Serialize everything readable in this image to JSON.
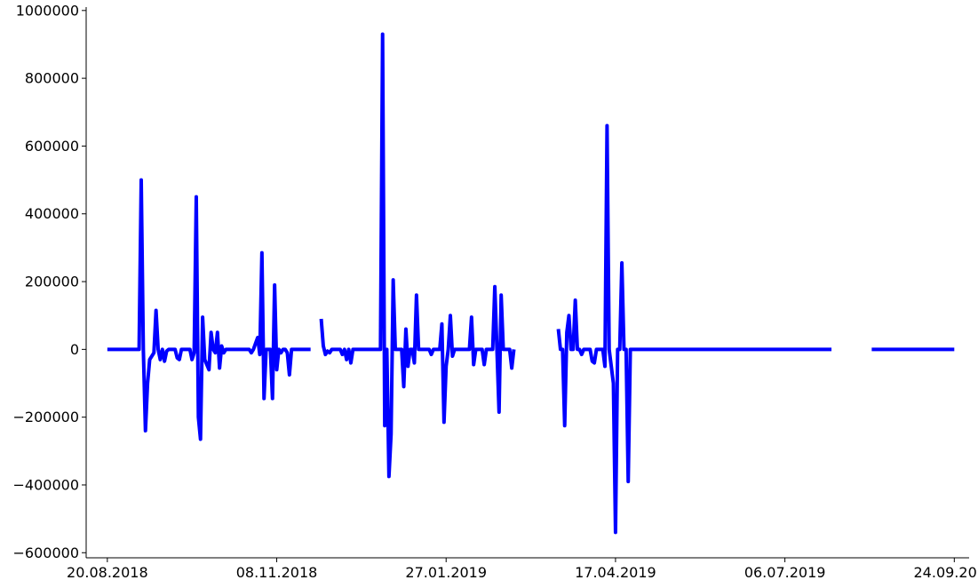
{
  "chart_data": {
    "type": "line",
    "title": "",
    "xlabel": "",
    "ylabel": "",
    "grid": false,
    "legend": "none",
    "x_axis": {
      "type": "date",
      "min": "2018-08-10",
      "max": "2019-10-01",
      "ticks": [
        {
          "value": "2018-08-20",
          "label": "20.08.2018"
        },
        {
          "value": "2018-11-08",
          "label": "08.11.2018"
        },
        {
          "value": "2019-01-27",
          "label": "27.01.2019"
        },
        {
          "value": "2019-04-17",
          "label": "17.04.2019"
        },
        {
          "value": "2019-07-06",
          "label": "06.07.2019"
        },
        {
          "value": "2019-09-24",
          "label": "24.09.2019"
        }
      ]
    },
    "y_axis": {
      "min": -615000,
      "max": 1010000,
      "ticks": [
        {
          "value": -600000,
          "label": "−600000"
        },
        {
          "value": -400000,
          "label": "−400000"
        },
        {
          "value": -200000,
          "label": "−200000"
        },
        {
          "value": 0,
          "label": "0"
        },
        {
          "value": 200000,
          "label": "200000"
        },
        {
          "value": 400000,
          "label": "400000"
        },
        {
          "value": 600000,
          "label": "600000"
        },
        {
          "value": 800000,
          "label": "800000"
        },
        {
          "value": 1000000,
          "label": "1000000"
        }
      ]
    },
    "series": [
      {
        "color": "#0000ff",
        "segments": [
          [
            [
              "2018-08-20",
              0
            ],
            [
              "2018-09-04",
              0
            ],
            [
              "2018-09-05",
              500000
            ],
            [
              "2018-09-06",
              0
            ],
            [
              "2018-09-07",
              -240000
            ],
            [
              "2018-09-08",
              -100000
            ],
            [
              "2018-09-09",
              -30000
            ],
            [
              "2018-09-11",
              -10000
            ],
            [
              "2018-09-12",
              115000
            ],
            [
              "2018-09-13",
              0
            ],
            [
              "2018-09-14",
              -30000
            ],
            [
              "2018-09-15",
              0
            ],
            [
              "2018-09-16",
              -35000
            ],
            [
              "2018-09-17",
              -5000
            ],
            [
              "2018-09-18",
              0
            ],
            [
              "2018-09-21",
              0
            ],
            [
              "2018-09-22",
              -25000
            ],
            [
              "2018-09-23",
              -30000
            ],
            [
              "2018-09-24",
              0
            ],
            [
              "2018-09-28",
              0
            ],
            [
              "2018-09-29",
              -30000
            ],
            [
              "2018-09-30",
              -10000
            ],
            [
              "2018-10-01",
              450000
            ],
            [
              "2018-10-02",
              -200000
            ],
            [
              "2018-10-03",
              -265000
            ],
            [
              "2018-10-04",
              95000
            ],
            [
              "2018-10-05",
              -30000
            ],
            [
              "2018-10-07",
              -60000
            ],
            [
              "2018-10-08",
              50000
            ],
            [
              "2018-10-09",
              0
            ],
            [
              "2018-10-10",
              -10000
            ],
            [
              "2018-10-11",
              50000
            ],
            [
              "2018-10-12",
              -55000
            ],
            [
              "2018-10-13",
              10000
            ],
            [
              "2018-10-14",
              -10000
            ],
            [
              "2018-10-15",
              0
            ],
            [
              "2018-10-26",
              0
            ],
            [
              "2018-10-27",
              -10000
            ],
            [
              "2018-10-28",
              0
            ],
            [
              "2018-10-30",
              35000
            ],
            [
              "2018-10-31",
              -15000
            ],
            [
              "2018-11-01",
              285000
            ],
            [
              "2018-11-02",
              -145000
            ],
            [
              "2018-11-03",
              0
            ],
            [
              "2018-11-05",
              0
            ],
            [
              "2018-11-06",
              -145000
            ],
            [
              "2018-11-07",
              190000
            ],
            [
              "2018-11-08",
              -60000
            ],
            [
              "2018-11-09",
              0
            ],
            [
              "2018-11-10",
              -10000
            ],
            [
              "2018-11-11",
              0
            ],
            [
              "2018-11-12",
              0
            ],
            [
              "2018-11-13",
              -10000
            ],
            [
              "2018-11-14",
              -75000
            ],
            [
              "2018-11-15",
              0
            ],
            [
              "2018-11-24",
              0
            ]
          ],
          [
            [
              "2018-11-29",
              90000
            ],
            [
              "2018-11-30",
              10000
            ],
            [
              "2018-12-01",
              -15000
            ],
            [
              "2018-12-02",
              -5000
            ],
            [
              "2018-12-03",
              -10000
            ],
            [
              "2018-12-04",
              0
            ],
            [
              "2018-12-08",
              0
            ],
            [
              "2018-12-09",
              -15000
            ],
            [
              "2018-12-10",
              0
            ],
            [
              "2018-12-11",
              -30000
            ],
            [
              "2018-12-12",
              0
            ],
            [
              "2018-12-13",
              -40000
            ],
            [
              "2018-12-14",
              0
            ],
            [
              "2018-12-27",
              0
            ],
            [
              "2018-12-28",
              930000
            ],
            [
              "2018-12-29",
              -225000
            ],
            [
              "2018-12-30",
              0
            ],
            [
              "2018-12-31",
              -375000
            ],
            [
              "2019-01-01",
              -250000
            ],
            [
              "2019-01-02",
              205000
            ],
            [
              "2019-01-03",
              0
            ],
            [
              "2019-01-06",
              0
            ],
            [
              "2019-01-07",
              -110000
            ],
            [
              "2019-01-08",
              60000
            ],
            [
              "2019-01-09",
              -50000
            ],
            [
              "2019-01-10",
              0
            ],
            [
              "2019-01-11",
              0
            ],
            [
              "2019-01-12",
              -40000
            ],
            [
              "2019-01-13",
              160000
            ],
            [
              "2019-01-14",
              0
            ],
            [
              "2019-01-19",
              0
            ],
            [
              "2019-01-20",
              -15000
            ],
            [
              "2019-01-21",
              0
            ],
            [
              "2019-01-24",
              0
            ],
            [
              "2019-01-25",
              75000
            ],
            [
              "2019-01-26",
              -215000
            ],
            [
              "2019-01-27",
              -50000
            ],
            [
              "2019-01-28",
              0
            ],
            [
              "2019-01-29",
              100000
            ],
            [
              "2019-01-30",
              -20000
            ],
            [
              "2019-01-31",
              0
            ],
            [
              "2019-02-07",
              0
            ],
            [
              "2019-02-08",
              95000
            ],
            [
              "2019-02-09",
              -45000
            ],
            [
              "2019-02-10",
              0
            ],
            [
              "2019-02-13",
              0
            ],
            [
              "2019-02-14",
              -45000
            ],
            [
              "2019-02-15",
              0
            ],
            [
              "2019-02-18",
              0
            ],
            [
              "2019-02-19",
              185000
            ],
            [
              "2019-02-20",
              0
            ],
            [
              "2019-02-21",
              -185000
            ],
            [
              "2019-02-22",
              160000
            ],
            [
              "2019-02-23",
              0
            ],
            [
              "2019-02-26",
              0
            ],
            [
              "2019-02-27",
              -55000
            ],
            [
              "2019-02-28",
              0
            ]
          ],
          [
            [
              "2019-03-21",
              60000
            ],
            [
              "2019-03-22",
              0
            ],
            [
              "2019-03-23",
              0
            ],
            [
              "2019-03-24",
              -225000
            ],
            [
              "2019-03-25",
              50000
            ],
            [
              "2019-03-26",
              100000
            ],
            [
              "2019-03-27",
              0
            ],
            [
              "2019-03-28",
              0
            ],
            [
              "2019-03-29",
              145000
            ],
            [
              "2019-03-30",
              0
            ],
            [
              "2019-03-31",
              0
            ],
            [
              "2019-04-01",
              -15000
            ],
            [
              "2019-04-02",
              0
            ],
            [
              "2019-04-05",
              0
            ],
            [
              "2019-04-06",
              -35000
            ],
            [
              "2019-04-07",
              -40000
            ],
            [
              "2019-04-08",
              0
            ],
            [
              "2019-04-11",
              0
            ],
            [
              "2019-04-12",
              -50000
            ],
            [
              "2019-04-13",
              660000
            ],
            [
              "2019-04-14",
              0
            ],
            [
              "2019-04-16",
              -100000
            ],
            [
              "2019-04-17",
              -540000
            ],
            [
              "2019-04-18",
              0
            ],
            [
              "2019-04-19",
              0
            ],
            [
              "2019-04-20",
              255000
            ],
            [
              "2019-04-21",
              0
            ],
            [
              "2019-04-22",
              0
            ],
            [
              "2019-04-23",
              -390000
            ],
            [
              "2019-04-24",
              0
            ],
            [
              "2019-07-28",
              0
            ]
          ],
          [
            [
              "2019-08-16",
              0
            ],
            [
              "2019-09-24",
              0
            ]
          ]
        ]
      }
    ]
  }
}
